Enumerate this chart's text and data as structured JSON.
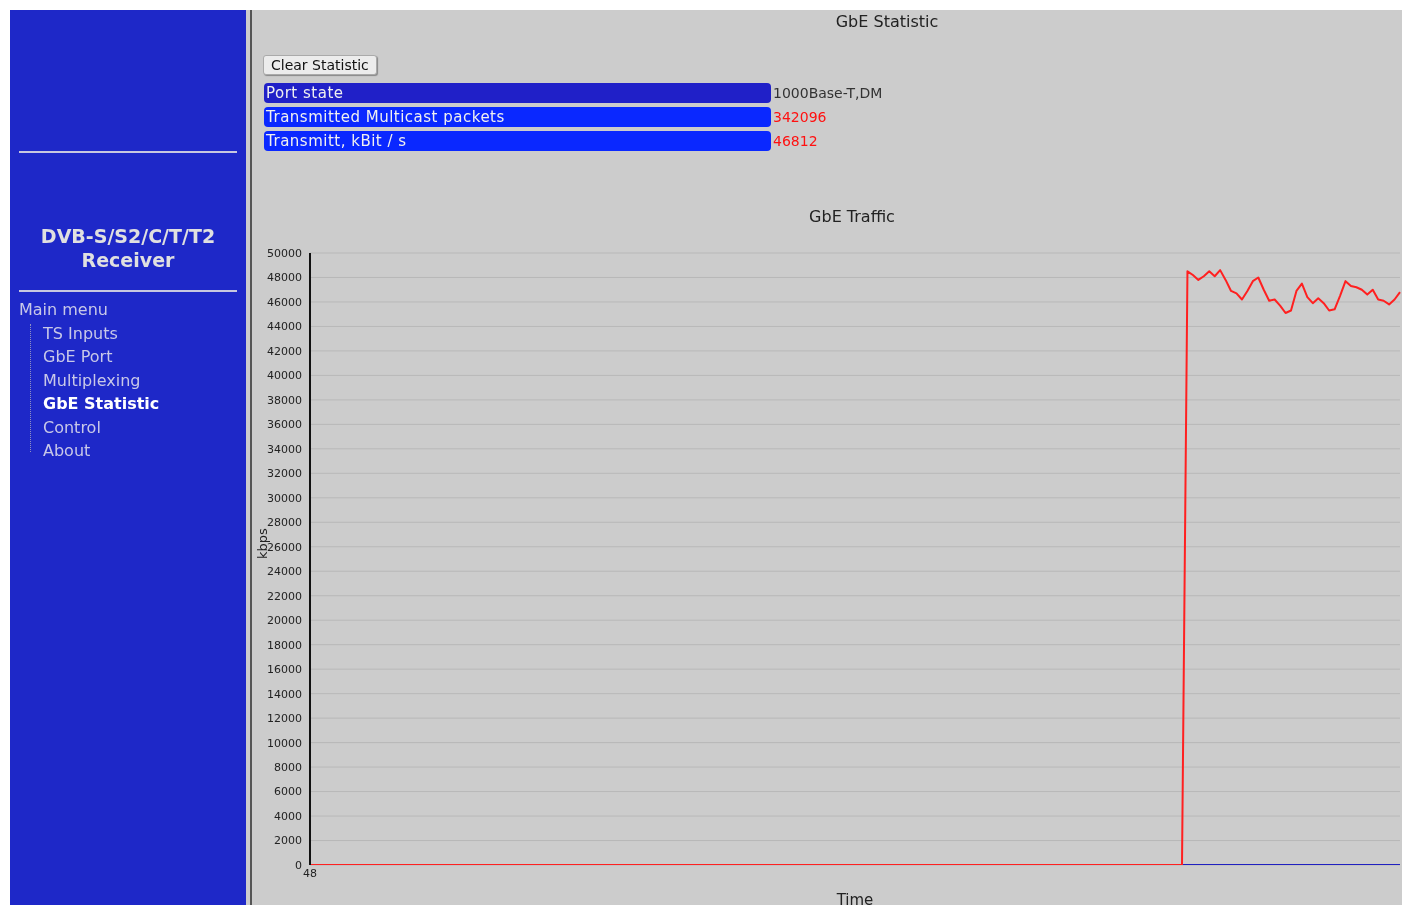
{
  "chart_data": [
    {
      "type": "other",
      "title": "DVB-S/S2/C/T/T2 Receiver",
      "annotations": [
        "Main menu",
        "TS Inputs",
        "GbE Port",
        "Multiplexing",
        "GbE Statistic",
        "Control",
        "About"
      ]
    },
    {
      "type": "other",
      "title": "GbE Statistic",
      "annotations": [
        "Clear Statistic",
        "Port state",
        "1000Base-T,DM",
        "Transmitted Multicast packets",
        "342096",
        "Transmitt, kBit / s",
        "46812"
      ]
    },
    {
      "type": "line",
      "title": "GbE Traffic",
      "xlabel": "Time",
      "ylabel": "kbps",
      "categories": [
        "48",
        null,
        null,
        null,
        null,
        null,
        null,
        null,
        null,
        null,
        null,
        null,
        null,
        null,
        null,
        null,
        null,
        null,
        null,
        null,
        null,
        null,
        null,
        null,
        null,
        null,
        null,
        null,
        null,
        null,
        null,
        null,
        null,
        null,
        null,
        null,
        null,
        null,
        null,
        null,
        null,
        null,
        null,
        null,
        null,
        null,
        null,
        null,
        null,
        null,
        null,
        null,
        null,
        null,
        null,
        null,
        null,
        null,
        null,
        null,
        null,
        null,
        null,
        null,
        null,
        null,
        null,
        null,
        null,
        null,
        null,
        null,
        null,
        null,
        null,
        null,
        null,
        null,
        null,
        null,
        null,
        null,
        null,
        null,
        null,
        null,
        null,
        null,
        null,
        null,
        null,
        null,
        null,
        null,
        null,
        null,
        null,
        null,
        null,
        null,
        null,
        null,
        null,
        null,
        null,
        null,
        null,
        null,
        null,
        null,
        null,
        null,
        null,
        null,
        null,
        null,
        null,
        null,
        null,
        null,
        null,
        null,
        null,
        null,
        null,
        null,
        null,
        null,
        null,
        null,
        null,
        null,
        null,
        null,
        null,
        null,
        null,
        null,
        null,
        null,
        null,
        null,
        null,
        null,
        null,
        null,
        null,
        null,
        null,
        null,
        null,
        null,
        null,
        null,
        null,
        null,
        null,
        null,
        null,
        null,
        null,
        null,
        null,
        null,
        null,
        null,
        null,
        null,
        null,
        null,
        null,
        null,
        null,
        null,
        null,
        null,
        null,
        null,
        null,
        null,
        null,
        null,
        null,
        null,
        null,
        null,
        null,
        null,
        null,
        null,
        null,
        null,
        null,
        null,
        null,
        null,
        null,
        null,
        null,
        null,
        null
      ],
      "ylim": [
        0,
        50000
      ],
      "yticks": [
        0,
        2000,
        4000,
        6000,
        8000,
        10000,
        12000,
        14000,
        16000,
        18000,
        20000,
        22000,
        24000,
        26000,
        28000,
        30000,
        32000,
        34000,
        36000,
        38000,
        40000,
        42000,
        44000,
        46000,
        48000,
        50000
      ],
      "grid": "y",
      "marker": "none",
      "line_style": "solid",
      "series": [
        {
          "color": "#2020c0",
          "values": [
            null,
            null,
            null,
            null,
            null,
            null,
            null,
            null,
            null,
            null,
            null,
            null,
            null,
            null,
            null,
            null,
            null,
            null,
            null,
            null,
            null,
            null,
            null,
            null,
            null,
            null,
            null,
            null,
            null,
            null,
            null,
            null,
            null,
            null,
            null,
            null,
            null,
            null,
            null,
            null,
            null,
            null,
            null,
            null,
            null,
            null,
            null,
            null,
            null,
            null,
            null,
            null,
            null,
            null,
            null,
            null,
            null,
            null,
            null,
            null,
            null,
            null,
            null,
            null,
            null,
            null,
            null,
            null,
            null,
            null,
            null,
            null,
            null,
            null,
            null,
            null,
            null,
            null,
            null,
            null,
            null,
            null,
            null,
            null,
            null,
            null,
            null,
            null,
            null,
            null,
            null,
            null,
            null,
            null,
            null,
            null,
            null,
            null,
            null,
            null,
            null,
            null,
            null,
            null,
            null,
            null,
            null,
            null,
            null,
            null,
            null,
            null,
            null,
            null,
            null,
            null,
            null,
            null,
            null,
            null,
            null,
            null,
            null,
            null,
            null,
            null,
            null,
            null,
            null,
            null,
            null,
            null,
            null,
            null,
            null,
            null,
            null,
            null,
            null,
            null,
            null,
            null,
            null,
            null,
            null,
            null,
            null,
            null,
            null,
            null,
            null,
            null,
            null,
            null,
            null,
            null,
            null,
            null,
            null,
            null,
            0,
            0,
            0,
            0,
            0,
            0,
            0,
            0,
            0,
            0,
            0,
            0,
            0,
            0,
            0,
            0,
            0,
            0,
            0,
            0,
            0,
            0,
            0,
            0,
            0,
            0,
            0,
            0,
            0,
            0,
            0,
            0,
            0,
            0,
            0,
            0,
            0,
            0,
            0,
            0,
            0
          ]
        },
        {
          "color": "#ff2020",
          "values": [
            0,
            0,
            0,
            0,
            0,
            0,
            0,
            0,
            0,
            0,
            0,
            0,
            0,
            0,
            0,
            0,
            0,
            0,
            0,
            0,
            0,
            0,
            0,
            0,
            0,
            0,
            0,
            0,
            0,
            0,
            0,
            0,
            0,
            0,
            0,
            0,
            0,
            0,
            0,
            0,
            0,
            0,
            0,
            0,
            0,
            0,
            0,
            0,
            0,
            0,
            0,
            0,
            0,
            0,
            0,
            0,
            0,
            0,
            0,
            0,
            0,
            0,
            0,
            0,
            0,
            0,
            0,
            0,
            0,
            0,
            0,
            0,
            0,
            0,
            0,
            0,
            0,
            0,
            0,
            0,
            0,
            0,
            0,
            0,
            0,
            0,
            0,
            0,
            0,
            0,
            0,
            0,
            0,
            0,
            0,
            0,
            0,
            0,
            0,
            0,
            0,
            0,
            0,
            0,
            0,
            0,
            0,
            0,
            0,
            0,
            0,
            0,
            0,
            0,
            0,
            0,
            0,
            0,
            0,
            0,
            0,
            0,
            0,
            0,
            0,
            0,
            0,
            0,
            0,
            0,
            0,
            0,
            0,
            0,
            0,
            0,
            0,
            0,
            0,
            0,
            0,
            0,
            0,
            0,
            0,
            0,
            0,
            0,
            0,
            0,
            0,
            0,
            0,
            0,
            0,
            0,
            0,
            0,
            0,
            0,
            0,
            48500,
            48200,
            47800,
            48100,
            48500,
            48100,
            48600,
            47800,
            46900,
            46700,
            46200,
            46900,
            47700,
            48000,
            47000,
            46100,
            46200,
            45700,
            45100,
            45300,
            46900,
            47500,
            46400,
            45900,
            46300,
            45900,
            45300,
            45400,
            46500,
            47700,
            47300,
            47200,
            47000,
            46600,
            47000,
            46200,
            46100,
            45800,
            46200,
            46800
          ]
        }
      ]
    }
  ]
}
